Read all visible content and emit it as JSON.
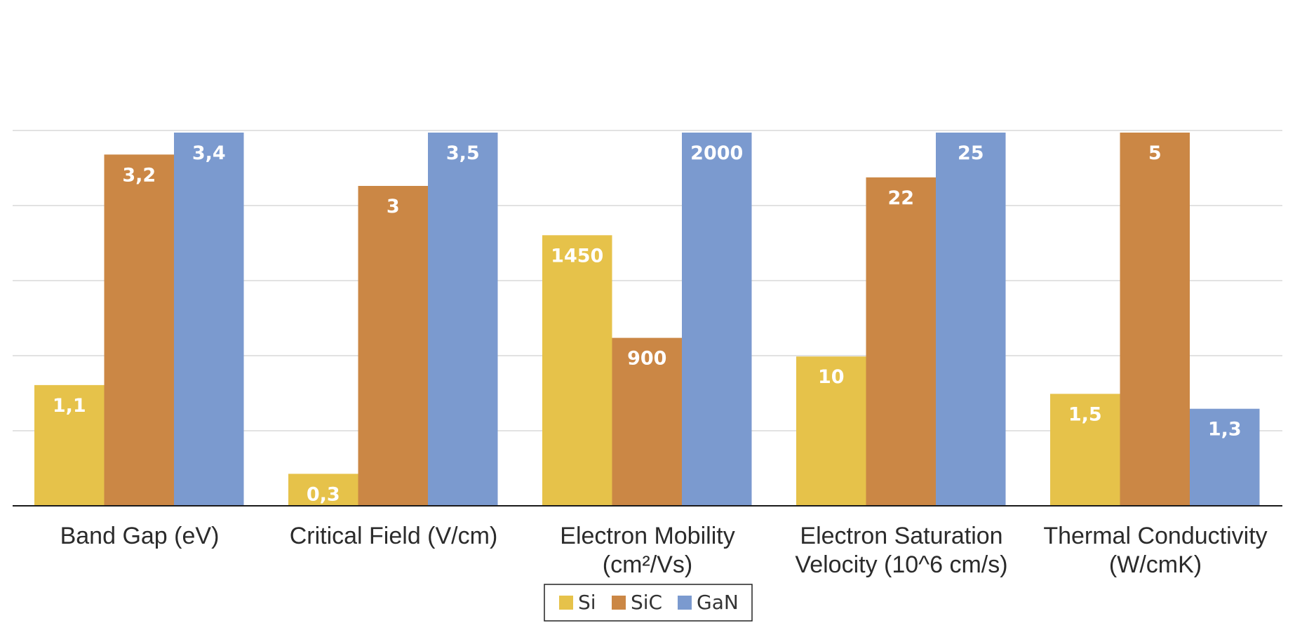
{
  "chart_data": {
    "type": "bar",
    "categories": [
      [
        "Band Gap (eV)"
      ],
      [
        "Critical Field (V/cm)"
      ],
      [
        "Electron Mobility",
        "(cm²/Vs)"
      ],
      [
        "Electron Saturation",
        "Velocity (10^6 cm/s)"
      ],
      [
        "Thermal Conductivity",
        "(W/cmK)"
      ]
    ],
    "series": [
      {
        "name": "Si",
        "color": "#E6C24A",
        "values": [
          1.1,
          0.3,
          1450,
          10,
          1.5
        ],
        "labels": [
          "1,1",
          "0,3",
          "1450",
          "10",
          "1,5"
        ]
      },
      {
        "name": "SiC",
        "color": "#CB8745",
        "values": [
          3.2,
          3,
          900,
          22,
          5
        ],
        "labels": [
          "3,2",
          "3",
          "900",
          "22",
          "5"
        ]
      },
      {
        "name": "GaN",
        "color": "#7B9ACF",
        "values": [
          3.4,
          3.5,
          2000,
          25,
          1.3
        ],
        "labels": [
          "3,4",
          "3,5",
          "2000",
          "25",
          "1,3"
        ]
      }
    ],
    "category_max": [
      3.4,
      3.5,
      2000,
      25,
      5
    ],
    "gridlines": true,
    "legend_position": "bottom",
    "title": "",
    "xlabel": "",
    "ylabel": ""
  }
}
